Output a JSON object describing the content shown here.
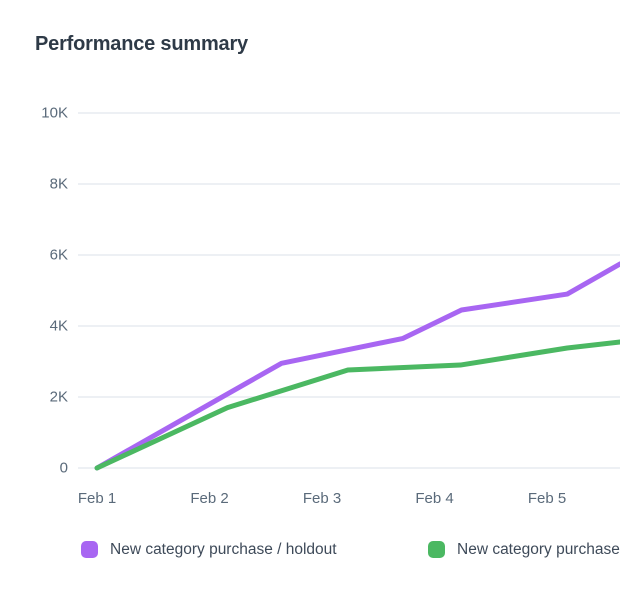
{
  "page": {
    "title": "Performance summary"
  },
  "colors": {
    "background": "#ffffff",
    "title_text": "#2e3a47",
    "axis_text": "#5a6a7a",
    "legend_text": "#3e4a59",
    "gridline": "#e7ecf1",
    "series_purple": "#a866f2",
    "series_green": "#4bb862"
  },
  "chart_data": {
    "type": "line",
    "title": "Performance summary",
    "xlabel": "",
    "ylabel": "",
    "grid": "horizontal",
    "legend_position": "bottom",
    "x_axis": {
      "tick_labels": [
        "Feb 1",
        "Feb 2",
        "Feb 3",
        "Feb 4",
        "Feb 5"
      ],
      "tick_days": [
        1,
        2,
        3,
        4,
        5
      ],
      "xlim_days": [
        1,
        5.65
      ],
      "note": "time axis, line continues past Feb 5 and is clipped at right edge"
    },
    "y_axis": {
      "tick_labels": [
        "0",
        "2K",
        "4K",
        "6K",
        "8K",
        "10K"
      ],
      "tick_values": [
        0,
        2000,
        4000,
        6000,
        8000,
        10000
      ],
      "ylim": [
        0,
        10000
      ]
    },
    "series": [
      {
        "name": "New category purchase / holdout",
        "color": "#a866f2",
        "points": [
          {
            "day": 1.0,
            "value": 0
          },
          {
            "day": 2.64,
            "value": 2950
          },
          {
            "day": 3.72,
            "value": 3650
          },
          {
            "day": 4.24,
            "value": 4450
          },
          {
            "day": 5.18,
            "value": 4900
          },
          {
            "day": 5.65,
            "value": 5750
          }
        ]
      },
      {
        "name": "New category purchase",
        "color": "#4bb862",
        "points": [
          {
            "day": 1.0,
            "value": 0
          },
          {
            "day": 2.16,
            "value": 1700
          },
          {
            "day": 3.23,
            "value": 2760
          },
          {
            "day": 4.23,
            "value": 2900
          },
          {
            "day": 5.18,
            "value": 3380
          },
          {
            "day": 5.65,
            "value": 3550
          }
        ]
      }
    ]
  }
}
